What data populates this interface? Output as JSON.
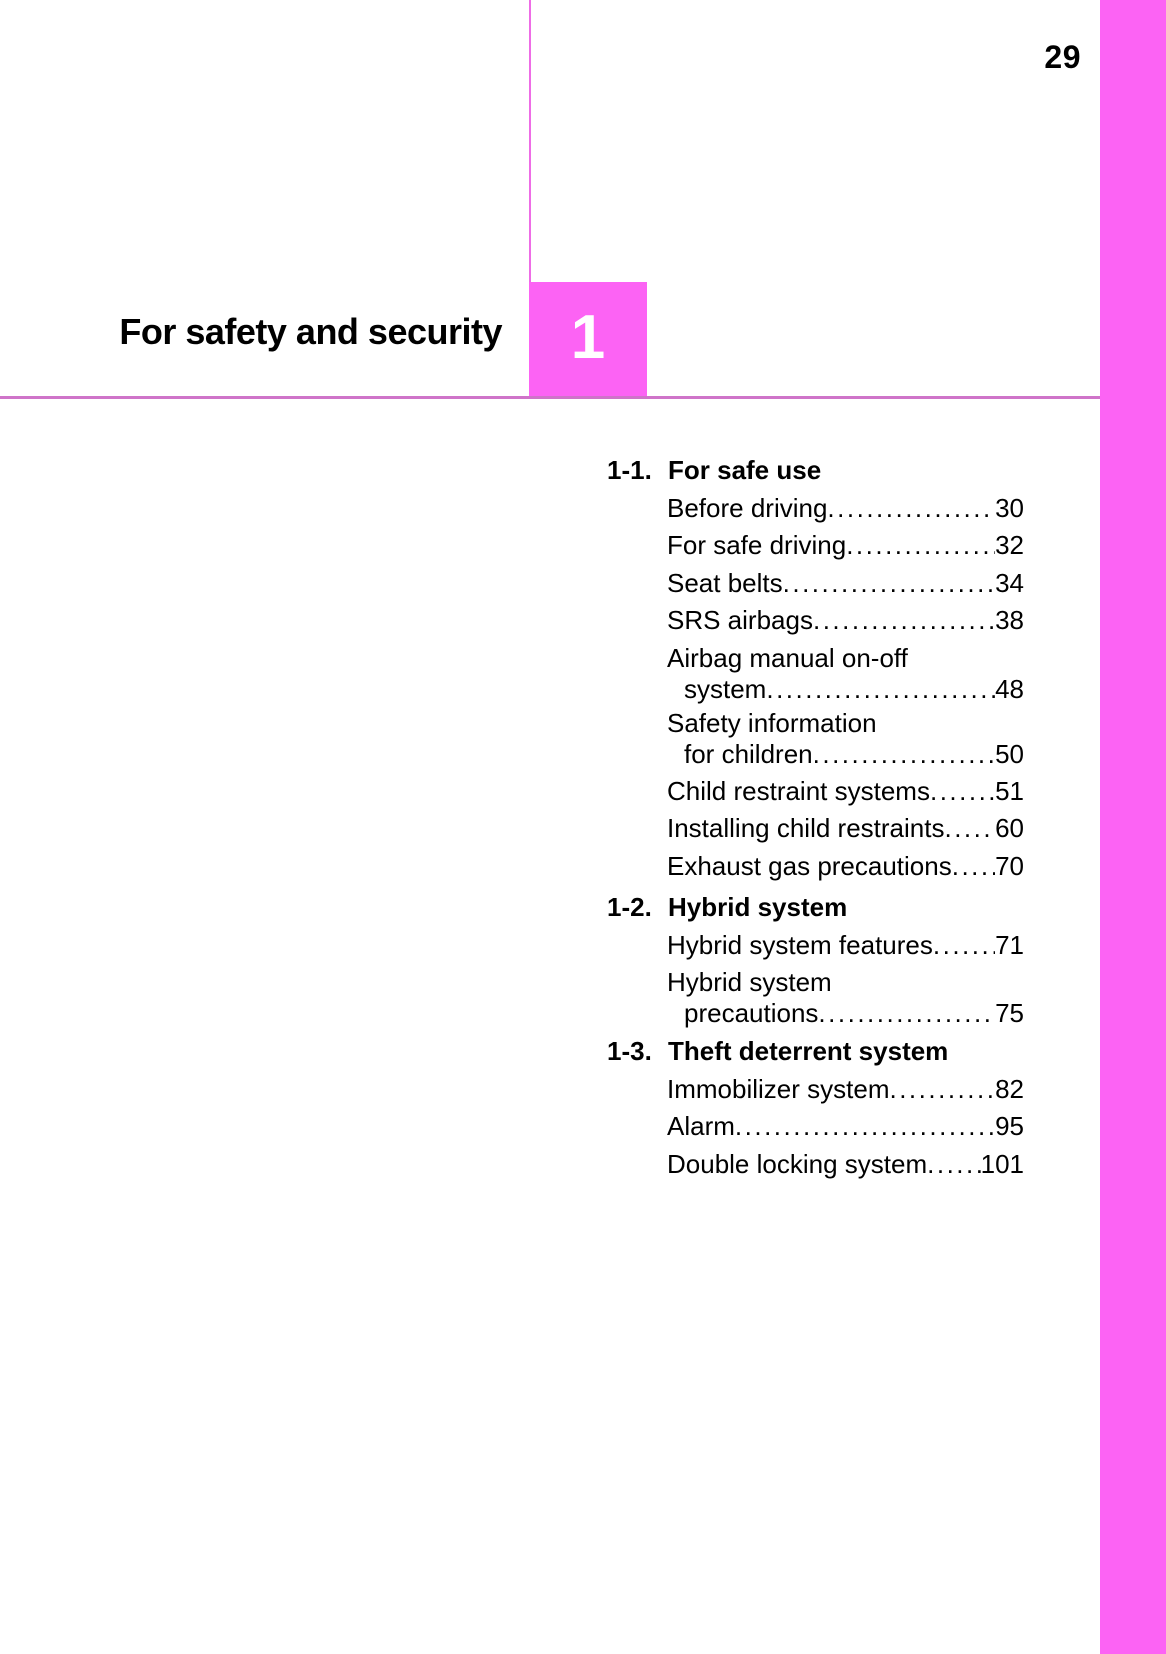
{
  "page": {
    "number": "29",
    "chapter_title": "For safety and security",
    "chapter_number": "1"
  },
  "colors": {
    "accent": "#fc63f4",
    "divider": "#ee6ce6",
    "rule": "#cf74c9"
  },
  "toc": {
    "items": [
      {
        "kind": "section",
        "num": "1-1.",
        "title": "For safe use"
      },
      {
        "kind": "entry",
        "text": "Before driving",
        "page": "30"
      },
      {
        "kind": "entry",
        "text": "For safe driving",
        "page": "32"
      },
      {
        "kind": "entry",
        "text": "Seat belts",
        "page": "34"
      },
      {
        "kind": "entry",
        "text": "SRS airbags",
        "page": "38"
      },
      {
        "kind": "entry2",
        "text": "Airbag manual on-off",
        "text2": "system",
        "page": "48"
      },
      {
        "kind": "entry2",
        "text": "Safety information",
        "text2": "for children",
        "page": "50"
      },
      {
        "kind": "entry",
        "text": "Child restraint systems",
        "page": "51"
      },
      {
        "kind": "entry",
        "text": "Installing child restraints",
        "page": "60"
      },
      {
        "kind": "entry",
        "text": "Exhaust gas precautions",
        "page": "70"
      },
      {
        "kind": "section",
        "num": "1-2.",
        "title": "Hybrid system"
      },
      {
        "kind": "entry",
        "text": "Hybrid system features",
        "page": "71"
      },
      {
        "kind": "entry2",
        "text": "Hybrid system",
        "text2": "precautions",
        "page": "75"
      },
      {
        "kind": "section",
        "num": "1-3.",
        "title": "Theft deterrent system"
      },
      {
        "kind": "entry",
        "text": "Immobilizer system",
        "page": "82"
      },
      {
        "kind": "entry",
        "text": "Alarm",
        "page": "95"
      },
      {
        "kind": "entry",
        "text": "Double locking system",
        "page": "101"
      }
    ]
  }
}
